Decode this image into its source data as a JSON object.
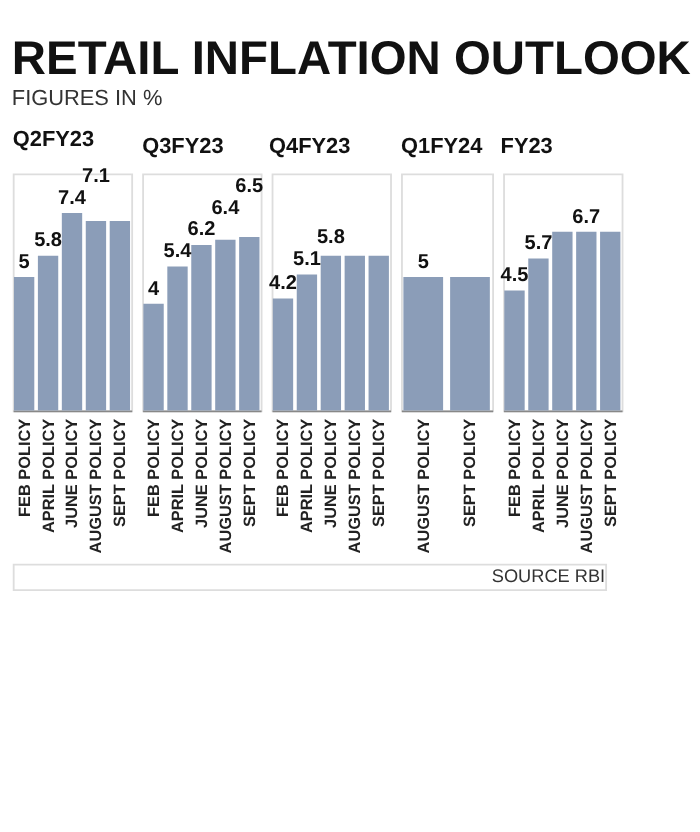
{
  "chart_data": [
    {
      "type": "other",
      "title": "RETAIL INFLATION OUTLOOK",
      "subtitle": "FIGURES IN %"
    },
    {
      "type": "bar",
      "title": "Q2FY23",
      "categories": [
        "FEB POLICY",
        "APRIL POLICY",
        "JUNE POLICY",
        "AUGUST POLICY",
        "SEPT POLICY"
      ],
      "values": [
        5,
        5.8,
        7.4,
        7.1,
        7.1
      ],
      "value_labels": [
        "5",
        "5.8",
        "7.4",
        "7.1",
        null
      ],
      "color": "#8b9db8"
    },
    {
      "type": "bar",
      "title": "Q3FY23",
      "categories": [
        "FEB POLICY",
        "APRIL POLICY",
        "JUNE POLICY",
        "AUGUST POLICY",
        "SEPT POLICY"
      ],
      "values": [
        4,
        5.4,
        6.2,
        6.4,
        6.5
      ],
      "value_labels": [
        "4",
        "5.4",
        "6.2",
        "6.4",
        "6.5"
      ],
      "color": "#8b9db8"
    },
    {
      "type": "bar",
      "title": "Q4FY23",
      "categories": [
        "FEB POLICY",
        "APRIL POLICY",
        "JUNE POLICY",
        "AUGUST POLICY",
        "SEPT POLICY"
      ],
      "values": [
        4.2,
        5.1,
        5.8,
        5.8,
        5.8
      ],
      "value_labels": [
        "4.2",
        "5.1",
        "5.8",
        null,
        null
      ],
      "color": "#8b9db8"
    },
    {
      "type": "bar",
      "title": "Q1FY24",
      "categories": [
        "AUGUST POLICY",
        "SEPT POLICY"
      ],
      "values": [
        5,
        5
      ],
      "value_labels": [
        "5",
        null
      ],
      "color": "#8b9db8"
    },
    {
      "type": "bar",
      "title": "FY23",
      "categories": [
        "FEB POLICY",
        "APRIL POLICY",
        "JUNE POLICY",
        "AUGUST POLICY",
        "SEPT POLICY"
      ],
      "values": [
        4.5,
        5.7,
        6.7,
        6.7,
        6.7
      ],
      "value_labels": [
        "4.5",
        "5.7",
        null,
        "6.7",
        null
      ],
      "color": "#8b9db8",
      "annotations": [
        "SOURCE RBI"
      ]
    }
  ]
}
